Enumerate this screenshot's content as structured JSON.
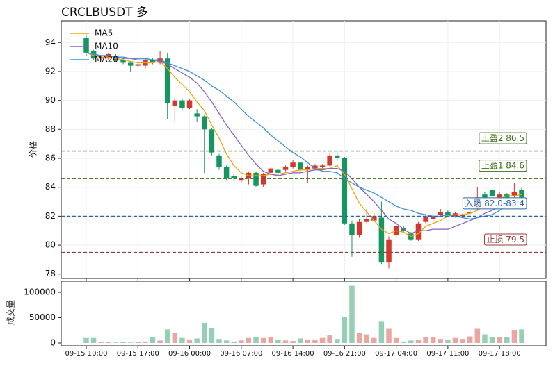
{
  "chart_data": {
    "type": "candlestick",
    "title": "CRCLBUSDT  多",
    "y_label": "价格",
    "volume_label": "成交量",
    "up_color": "#d1392e",
    "down_color": "#13975e",
    "categories": [
      "09-15 10:00",
      null,
      null,
      null,
      null,
      null,
      null,
      "09-15 17:00",
      null,
      null,
      null,
      null,
      null,
      null,
      "09-16 00:00",
      null,
      null,
      null,
      null,
      null,
      null,
      "09-16 07:00",
      null,
      null,
      null,
      null,
      null,
      null,
      "09-16 14:00",
      null,
      null,
      null,
      null,
      null,
      null,
      "09-16 21:00",
      null,
      null,
      null,
      null,
      null,
      null,
      "09-17 04:00",
      null,
      null,
      null,
      null,
      null,
      null,
      "09-17 11:00",
      null,
      null,
      null,
      null,
      null,
      null,
      "09-17 18:00",
      null,
      null,
      null
    ],
    "open": [
      94.3,
      93.4,
      92.9,
      92.9,
      93.1,
      92.8,
      92.6,
      92.4,
      92.4,
      92.8,
      92.6,
      92.9,
      89.6,
      90.0,
      89.5,
      89.1,
      88.9,
      88.0,
      86.2,
      85.4,
      84.8,
      84.5,
      84.6,
      85.0,
      84.2,
      85.0,
      85.2,
      85.2,
      85.4,
      85.7,
      85.2,
      85.3,
      85.4,
      85.5,
      86.2,
      86.0,
      81.5,
      80.7,
      81.6,
      81.7,
      81.9,
      78.8,
      80.7,
      81.2,
      80.8,
      80.4,
      81.6,
      81.8,
      82.1,
      82.3,
      82.0,
      82.0,
      82.2,
      82.5,
      83.5,
      83.8,
      83.3,
      83.5,
      83.4,
      83.8
    ],
    "high": [
      94.5,
      93.5,
      93.1,
      93.3,
      93.2,
      92.9,
      92.7,
      92.6,
      92.9,
      92.9,
      93.4,
      93.3,
      90.2,
      90.1,
      90.1,
      89.4,
      89.0,
      88.1,
      86.3,
      85.5,
      84.9,
      84.8,
      85.1,
      85.1,
      85.0,
      85.4,
      85.3,
      85.5,
      85.9,
      85.8,
      85.5,
      85.6,
      85.6,
      86.4,
      86.5,
      86.1,
      81.7,
      81.8,
      82.5,
      82.2,
      83.0,
      80.6,
      81.5,
      81.3,
      80.9,
      81.6,
      82.1,
      82.2,
      82.5,
      82.4,
      82.3,
      82.2,
      82.4,
      84.0,
      83.7,
      83.9,
      83.7,
      83.6,
      84.3,
      84.0
    ],
    "low": [
      93.1,
      92.8,
      92.8,
      92.8,
      92.7,
      92.5,
      92.0,
      92.3,
      92.2,
      92.5,
      92.5,
      88.7,
      88.5,
      89.3,
      89.4,
      88.5,
      85.0,
      86.2,
      85.2,
      84.5,
      84.4,
      84.3,
      84.2,
      84.0,
      84.0,
      84.9,
      84.9,
      85.1,
      85.3,
      85.1,
      84.3,
      85.2,
      85.3,
      85.4,
      85.8,
      81.4,
      79.2,
      80.5,
      81.5,
      81.6,
      78.7,
      78.4,
      80.5,
      80.9,
      80.3,
      80.3,
      81.5,
      81.7,
      82.0,
      82.0,
      81.9,
      81.9,
      82.1,
      82.4,
      83.2,
      83.3,
      83.2,
      83.2,
      83.3,
      83.2
    ],
    "close": [
      93.3,
      92.9,
      93.0,
      93.2,
      92.8,
      92.6,
      92.4,
      92.5,
      92.8,
      92.6,
      92.9,
      89.8,
      90.0,
      89.5,
      90.0,
      88.9,
      88.0,
      86.4,
      85.4,
      84.6,
      84.6,
      84.6,
      85.0,
      84.1,
      84.9,
      85.3,
      85.0,
      85.4,
      85.7,
      85.2,
      85.4,
      85.5,
      85.5,
      86.2,
      86.0,
      81.5,
      80.7,
      81.6,
      81.8,
      82.0,
      78.8,
      80.4,
      81.3,
      81.0,
      80.4,
      81.5,
      82.0,
      82.0,
      82.3,
      82.1,
      82.2,
      82.1,
      82.3,
      83.3,
      83.3,
      83.4,
      83.5,
      83.3,
      83.7,
      83.3
    ],
    "volume": [
      10000,
      10000,
      2000,
      1500,
      1000,
      1500,
      1000,
      2000,
      3000,
      12000,
      5000,
      27000,
      20000,
      10000,
      7000,
      9000,
      40000,
      30000,
      8000,
      5000,
      3000,
      5000,
      10000,
      11000,
      10000,
      11000,
      6000,
      5000,
      4000,
      9000,
      6000,
      7000,
      10000,
      15000,
      8000,
      52000,
      113000,
      20000,
      17000,
      10000,
      42000,
      28000,
      10000,
      3000,
      5000,
      6000,
      12000,
      11000,
      8000,
      7000,
      10000,
      8000,
      13000,
      28000,
      17000,
      12000,
      11000,
      11000,
      26000,
      27000
    ],
    "series": [
      {
        "name": "MA5",
        "color": "#f0a30a",
        "values": [
          93.3,
          93.1,
          93.0,
          93.0,
          92.9,
          92.8,
          92.7,
          92.6,
          92.6,
          92.6,
          92.7,
          92.2,
          91.6,
          91.1,
          90.6,
          89.9,
          89.3,
          88.3,
          87.4,
          86.3,
          85.5,
          85.0,
          84.8,
          84.8,
          84.8,
          84.9,
          84.9,
          85.0,
          85.1,
          85.2,
          85.2,
          85.3,
          85.3,
          85.3,
          85.5,
          84.9,
          83.9,
          82.9,
          82.3,
          81.7,
          81.1,
          80.8,
          81.0,
          80.9,
          80.6,
          80.8,
          81.3,
          81.5,
          81.7,
          82.0,
          82.1,
          82.1,
          82.2,
          82.4,
          82.7,
          82.9,
          83.2,
          83.4,
          83.4,
          83.5
        ]
      },
      {
        "name": "MA10",
        "color": "#8661c1",
        "values": [
          93.3,
          93.2,
          93.1,
          93.1,
          93.0,
          92.9,
          92.9,
          92.8,
          92.8,
          92.8,
          92.7,
          92.5,
          92.2,
          91.9,
          91.6,
          91.2,
          90.6,
          89.9,
          89.1,
          88.3,
          87.6,
          86.9,
          86.2,
          85.6,
          85.1,
          84.9,
          84.8,
          84.9,
          85.0,
          85.0,
          85.1,
          85.2,
          85.2,
          85.3,
          85.3,
          85.1,
          84.6,
          84.0,
          83.5,
          83.0,
          82.4,
          81.8,
          81.5,
          81.1,
          80.8,
          81.0,
          81.0,
          81.1,
          81.1,
          81.1,
          81.3,
          81.5,
          81.7,
          81.9,
          82.2,
          82.4,
          82.7,
          82.8,
          82.9,
          83.1
        ]
      },
      {
        "name": "MA20",
        "color": "#3a8fd6",
        "values": [
          93.3,
          93.2,
          93.1,
          93.1,
          93.0,
          93.0,
          92.9,
          92.9,
          92.9,
          92.8,
          92.8,
          92.6,
          92.4,
          92.2,
          92.0,
          91.7,
          91.4,
          91.0,
          90.7,
          90.3,
          89.9,
          89.4,
          88.9,
          88.5,
          88.1,
          87.6,
          87.2,
          86.8,
          86.4,
          86.1,
          85.7,
          85.3,
          85.1,
          85.1,
          85.0,
          84.6,
          84.3,
          84.0,
          83.8,
          83.6,
          83.3,
          83.0,
          82.7,
          82.5,
          82.4,
          82.2,
          82.1,
          82.0,
          82.0,
          82.1,
          82.0,
          81.9,
          81.8,
          81.9,
          82.0,
          82.1,
          82.4,
          82.7,
          82.9,
          83.1
        ]
      }
    ],
    "levels": [
      {
        "value": 86.5,
        "label": "止盈2 86.5",
        "color": "#3d6e1a"
      },
      {
        "value": 84.6,
        "label": "止盈1 84.6",
        "color": "#3d6e1a"
      },
      {
        "value": 82.0,
        "label": "入场 82.0-83.4",
        "color": "#2767a8"
      },
      {
        "value": 79.5,
        "label": "止损 79.5",
        "color": "#9a3b36"
      }
    ],
    "ylim": [
      77.7,
      95.5
    ],
    "yticks": [
      78,
      80,
      82,
      84,
      86,
      88,
      90,
      92,
      94
    ],
    "volume_ylim": [
      0,
      122000
    ],
    "volume_ticks": [
      0,
      50000,
      100000
    ],
    "grid": true,
    "legend": "upper-left"
  }
}
